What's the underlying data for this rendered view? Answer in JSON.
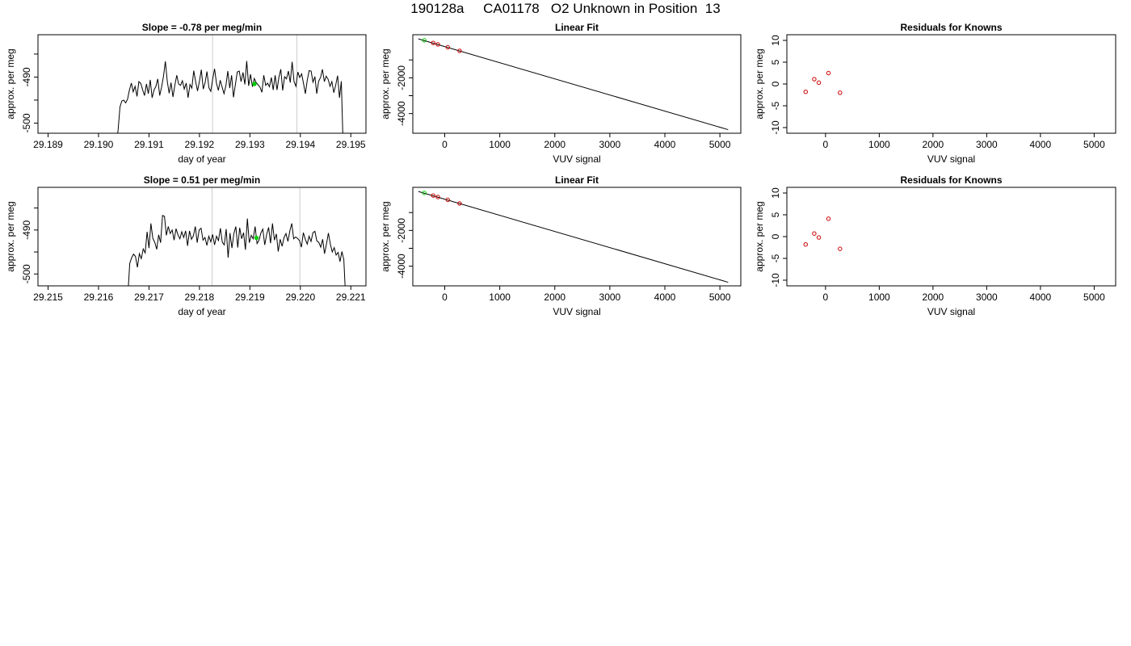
{
  "page": {
    "title": "190128a     CA01178   O2 Unknown in Position  13"
  },
  "chart_data": [
    {
      "type": "line",
      "title": "Slope =  -0.78  per meg/min",
      "xlabel": "day of year",
      "ylabel": "approx. per meg",
      "xlim": [
        29.1888,
        29.1953
      ],
      "ylim": [
        -502.2,
        -480.8
      ],
      "xticks": [
        "29.189",
        "29.190",
        "29.191",
        "29.192",
        "29.193",
        "29.194",
        "29.195"
      ],
      "yticks": [
        "-490",
        "-500"
      ],
      "xtick_values": [
        29.189,
        29.19,
        29.191,
        29.192,
        29.193,
        29.194,
        29.195
      ],
      "ytick_values": [
        -490,
        -500
      ],
      "ytick_minor": [
        -485,
        -495
      ],
      "vlines": [
        29.19226,
        29.19393
      ],
      "series": [
        {
          "color": "#000000",
          "x_start": 29.19035,
          "x_end": 29.19485,
          "start_value": -505,
          "end_value": -506,
          "values": [
            -505,
            -501.5,
            -496.5,
            -495.2,
            -495.0,
            -495.6,
            -494.8,
            -492.8,
            -491.3,
            -493.2,
            -492.0,
            -494.2,
            -491.0,
            -491.4,
            -492.8,
            -494.0,
            -491.5,
            -493.6,
            -490.6,
            -494.5,
            -492.8,
            -492.0,
            -490.4,
            -494.0,
            -492.2,
            -489.8,
            -486.6,
            -491.0,
            -493.5,
            -491.2,
            -494.3,
            -491.8,
            -489.6,
            -491.5,
            -491.8,
            -490.8,
            -492.6,
            -491.3,
            -494.5,
            -491.6,
            -492.4,
            -488.6,
            -491.0,
            -493.0,
            -490.9,
            -488.4,
            -492.6,
            -491.2,
            -488.8,
            -492.3,
            -493.1,
            -490.4,
            -488.2,
            -491.4,
            -492.9,
            -490.7,
            -492.2,
            -493.6,
            -491.8,
            -488.7,
            -492.4,
            -489.6,
            -494.4,
            -491.6,
            -488.9,
            -488.7,
            -491.0,
            -489.0,
            -491.6,
            -486.5,
            -491.9,
            -489.4,
            -492.1,
            -490.3,
            -491.2,
            -491.7,
            -492.2,
            -493.3,
            -489.6,
            -491.8,
            -491.3,
            -492.1,
            -490.1,
            -492.8,
            -489.6,
            -492.8,
            -490.0,
            -488.3,
            -492.9,
            -489.9,
            -490.4,
            -488.7,
            -491.2,
            -486.7,
            -491.0,
            -492.0,
            -488.9,
            -490.1,
            -489.3,
            -491.4,
            -493.6,
            -490.6,
            -488.6,
            -488.7,
            -491.1,
            -489.9,
            -493.6,
            -490.9,
            -490.1,
            -488.3,
            -491.0,
            -489.8,
            -490.5,
            -492.0,
            -491.0,
            -493.4,
            -491.8,
            -489.7,
            -494.5,
            -490.9,
            -506
          ]
        }
      ],
      "highlight": {
        "x": 29.19309,
        "y": -491.5,
        "color": "#00cc00"
      }
    },
    {
      "type": "scatter",
      "title": "Linear Fit",
      "xlabel": "VUV signal",
      "ylabel": "approx. per meg",
      "xlim": [
        -580,
        5380
      ],
      "ylim": [
        -5100,
        410
      ],
      "xticks": [
        "0",
        "1000",
        "2000",
        "3000",
        "4000",
        "5000"
      ],
      "yticks": [
        "-2000",
        "-4000"
      ],
      "xtick_values": [
        0,
        1000,
        2000,
        3000,
        4000,
        5000
      ],
      "ytick_values": [
        -2000,
        -4000
      ],
      "ytick_minor": [
        -1000,
        -3000
      ],
      "fit_line": {
        "x": [
          -480,
          5150
        ],
        "y": [
          180,
          -4900
        ]
      },
      "series": [
        {
          "name": "knowns",
          "color": "#cc0000",
          "x": [
            -210,
            -125,
            55,
            270
          ],
          "y": [
            -50,
            -130,
            -290,
            -490
          ]
        },
        {
          "name": "unknown",
          "color": "#00cc00",
          "x": [
            -372
          ],
          "y": [
            100
          ]
        }
      ]
    },
    {
      "type": "scatter",
      "title": "Residuals for Knowns",
      "xlabel": "VUV signal",
      "ylabel": "approx. per meg",
      "xlim": [
        -720,
        5400
      ],
      "ylim": [
        -11.3,
        11.3
      ],
      "xticks": [
        "0",
        "1000",
        "2000",
        "3000",
        "4000",
        "5000"
      ],
      "yticks": [
        "10",
        "5",
        "0",
        "-5",
        "-10"
      ],
      "xtick_values": [
        0,
        1000,
        2000,
        3000,
        4000,
        5000
      ],
      "ytick_values": [
        10,
        5,
        0,
        -5,
        -10
      ],
      "ytick_minor": [],
      "series": [
        {
          "name": "knowns",
          "color": "#cc0000",
          "x": [
            -370,
            -210,
            -125,
            55,
            270
          ],
          "y": [
            -1.8,
            1.1,
            0.3,
            2.5,
            -2.0
          ]
        }
      ]
    },
    {
      "type": "line",
      "title": "Slope =  0.51  per meg/min",
      "xlabel": "day of year",
      "ylabel": "approx. per meg",
      "xlim": [
        29.2148,
        29.2213
      ],
      "ylim": [
        -502.7,
        -480.3
      ],
      "xticks": [
        "29.215",
        "29.216",
        "29.217",
        "29.218",
        "29.219",
        "29.220",
        "29.221"
      ],
      "yticks": [
        "-490",
        "-500"
      ],
      "xtick_values": [
        29.215,
        29.216,
        29.217,
        29.218,
        29.219,
        29.22,
        29.221
      ],
      "ytick_values": [
        -490,
        -500
      ],
      "ytick_minor": [
        -485,
        -495
      ],
      "vlines": [
        29.21825,
        29.21999
      ],
      "series": [
        {
          "color": "#000000",
          "x_start": 29.21658,
          "x_end": 29.2209,
          "start_value": -505,
          "end_value": -506,
          "values": [
            -505,
            -497.6,
            -496.3,
            -495.5,
            -496.0,
            -498.5,
            -495.4,
            -496.5,
            -494.3,
            -495.2,
            -490.4,
            -494.1,
            -488.5,
            -491.9,
            -492.8,
            -494.4,
            -491.1,
            -492.9,
            -486.7,
            -486.9,
            -491.2,
            -489.2,
            -490.8,
            -490.0,
            -492.3,
            -489.7,
            -491.1,
            -492.0,
            -490.4,
            -491.7,
            -490.2,
            -493.6,
            -490.2,
            -492.1,
            -491.3,
            -489.2,
            -492.9,
            -490.0,
            -489.6,
            -492.3,
            -491.7,
            -493.5,
            -491.4,
            -492.7,
            -491.0,
            -493.4,
            -491.4,
            -492.4,
            -489.6,
            -492.8,
            -493.4,
            -489.8,
            -496.3,
            -490.7,
            -494.1,
            -490.8,
            -489.2,
            -494.0,
            -489.5,
            -492.0,
            -490.6,
            -494.5,
            -487.4,
            -492.9,
            -491.2,
            -492.0,
            -489.2,
            -493.1,
            -492.3,
            -490.7,
            -489.8,
            -493.4,
            -491.0,
            -489.4,
            -493.0,
            -488.5,
            -492.3,
            -490.9,
            -494.9,
            -492.1,
            -493.7,
            -491.7,
            -490.8,
            -492.6,
            -490.2,
            -488.5,
            -492.0,
            -491.6,
            -491.9,
            -492.4,
            -493.9,
            -490.6,
            -492.1,
            -493.2,
            -491.4,
            -492.6,
            -490.6,
            -490.3,
            -492.5,
            -492.8,
            -493.9,
            -492.1,
            -495.4,
            -493.2,
            -490.7,
            -493.2,
            -495.0,
            -494.0,
            -495.7,
            -495.1,
            -497.2,
            -494.9,
            -496.7,
            -506
          ]
        }
      ],
      "highlight": {
        "x": 29.21913,
        "y": -491.8,
        "color": "#00cc00"
      }
    },
    {
      "type": "scatter",
      "title": "Linear Fit",
      "xlabel": "VUV signal",
      "ylabel": "approx. per meg",
      "xlim": [
        -580,
        5380
      ],
      "ylim": [
        -5100,
        410
      ],
      "xticks": [
        "0",
        "1000",
        "2000",
        "3000",
        "4000",
        "5000"
      ],
      "yticks": [
        "-2000",
        "-4000"
      ],
      "xtick_values": [
        0,
        1000,
        2000,
        3000,
        4000,
        5000
      ],
      "ytick_values": [
        -2000,
        -4000
      ],
      "ytick_minor": [
        -1000,
        -3000
      ],
      "fit_line": {
        "x": [
          -480,
          5150
        ],
        "y": [
          180,
          -4900
        ]
      },
      "series": [
        {
          "name": "knowns",
          "color": "#cc0000",
          "x": [
            -210,
            -125,
            55,
            270
          ],
          "y": [
            -50,
            -130,
            -290,
            -490
          ]
        },
        {
          "name": "unknown",
          "color": "#00cc00",
          "x": [
            -372
          ],
          "y": [
            100
          ]
        }
      ]
    },
    {
      "type": "scatter",
      "title": "Residuals for Knowns",
      "xlabel": "VUV signal",
      "ylabel": "approx. per meg",
      "xlim": [
        -720,
        5400
      ],
      "ylim": [
        -11.3,
        11.3
      ],
      "xticks": [
        "0",
        "1000",
        "2000",
        "3000",
        "4000",
        "5000"
      ],
      "yticks": [
        "10",
        "5",
        "0",
        "-5",
        "-10"
      ],
      "xtick_values": [
        0,
        1000,
        2000,
        3000,
        4000,
        5000
      ],
      "ytick_values": [
        10,
        5,
        0,
        -5,
        -10
      ],
      "ytick_minor": [],
      "series": [
        {
          "name": "knowns",
          "color": "#cc0000",
          "x": [
            -370,
            -210,
            -125,
            55,
            270
          ],
          "y": [
            -1.8,
            0.7,
            -0.2,
            4.1,
            -2.8
          ]
        }
      ]
    }
  ]
}
